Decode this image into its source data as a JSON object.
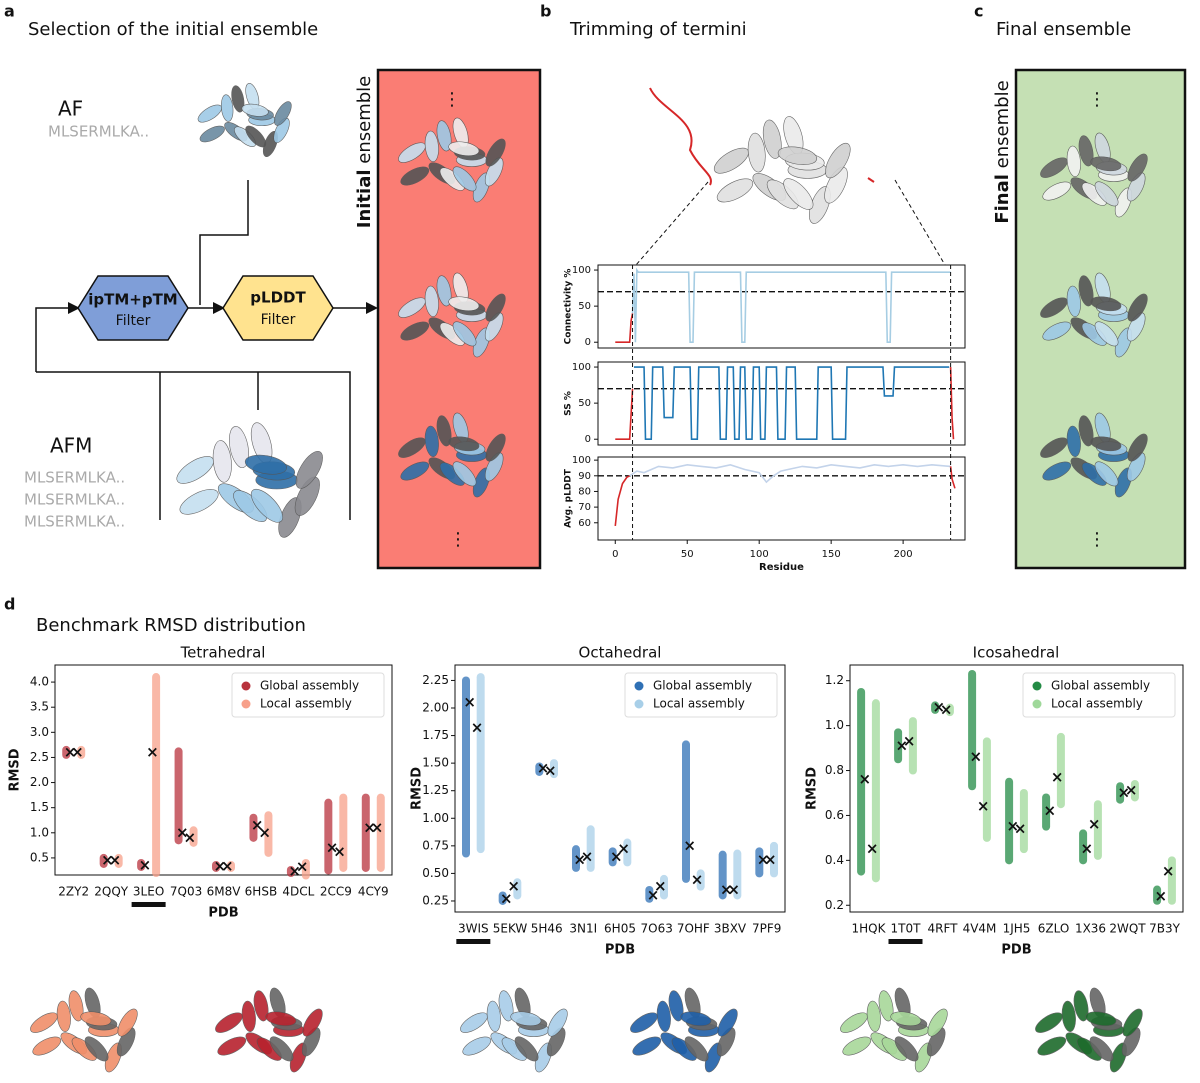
{
  "panels": [
    {
      "letter": "a",
      "title": "Selection of the initial ensemble"
    },
    {
      "letter": "b",
      "title": "Trimming of termini"
    },
    {
      "letter": "c",
      "title": "Final ensemble"
    },
    {
      "letter": "d",
      "title": "Benchmark RMSD distribution"
    }
  ],
  "diagram": {
    "af": "AF",
    "af_seq": "MLSERMLKA..",
    "afm": "AFM",
    "afm_seqs": [
      "MLSERMLKA..",
      "MLSERMLKA..",
      "MLSERMLKA.."
    ],
    "filter1": {
      "name": "ipTM+pTM",
      "label": "Filter"
    },
    "filter2": {
      "name": "pLDDT",
      "label": "Filter"
    },
    "initial": {
      "bold": "Initial",
      "rest": "ensemble"
    },
    "final": {
      "bold": "Final",
      "rest": "ensemble"
    },
    "ellipsis": "⋮",
    "trim_residues": [
      12,
      233
    ]
  },
  "chart_data": [
    {
      "type": "line",
      "ylabel": "Connectivity %",
      "xlim": [
        -12,
        243
      ],
      "ylim": [
        -8,
        107
      ],
      "yticks": [
        0,
        50,
        100
      ],
      "threshold": 70,
      "series": [
        {
          "color": "#d62728",
          "x": [
            0,
            10,
            11,
            12
          ],
          "values": [
            0,
            0,
            30,
            40
          ]
        },
        {
          "color": "#a6cde3",
          "x": [
            12,
            13,
            14,
            15,
            16,
            50,
            51,
            52,
            54,
            55,
            56,
            87,
            88,
            90,
            91,
            188,
            189,
            191,
            192,
            233
          ],
          "values": [
            40,
            95,
            0,
            100,
            97,
            97,
            97,
            0,
            0,
            97,
            97,
            97,
            0,
            0,
            97,
            97,
            0,
            0,
            97,
            97
          ]
        }
      ]
    },
    {
      "type": "line",
      "ylabel": "SS %",
      "xlim": [
        -12,
        243
      ],
      "ylim": [
        -8,
        107
      ],
      "yticks": [
        0,
        50,
        100
      ],
      "threshold": 70,
      "series": [
        {
          "color": "#d62728",
          "x": [
            0,
            10,
            12
          ],
          "values": [
            0,
            0,
            70
          ]
        },
        {
          "color": "#1f77b4",
          "x": [
            13,
            20,
            21,
            25,
            26,
            33,
            34,
            40,
            41,
            52,
            53,
            57,
            58,
            72,
            73,
            77,
            78,
            82,
            83,
            86,
            87,
            90,
            91,
            95,
            96,
            100,
            101,
            104,
            105,
            112,
            113,
            118,
            119,
            125,
            126,
            140,
            141,
            150,
            151,
            160,
            161,
            186,
            187,
            193,
            194,
            232
          ],
          "values": [
            100,
            100,
            0,
            0,
            100,
            100,
            30,
            30,
            100,
            100,
            0,
            0,
            100,
            100,
            0,
            0,
            100,
            100,
            0,
            0,
            100,
            100,
            0,
            0,
            100,
            100,
            0,
            0,
            100,
            100,
            0,
            0,
            100,
            100,
            0,
            0,
            100,
            100,
            0,
            0,
            100,
            100,
            60,
            60,
            100,
            100
          ]
        },
        {
          "color": "#d62728",
          "x": [
            233,
            234,
            235
          ],
          "values": [
            100,
            30,
            0
          ]
        }
      ]
    },
    {
      "type": "line",
      "ylabel": "Avg. pLDDT",
      "xlabel": "Residue",
      "xlim": [
        -12,
        243
      ],
      "xticks": [
        0,
        50,
        100,
        150,
        200
      ],
      "ylim": [
        49,
        102
      ],
      "yticks": [
        60,
        70,
        80,
        90,
        100
      ],
      "threshold": 90,
      "series": [
        {
          "color": "#d62728",
          "x": [
            0,
            2,
            5,
            8,
            10
          ],
          "values": [
            58,
            75,
            85,
            89,
            90
          ]
        },
        {
          "color": "#c3d3ea",
          "x": [
            10,
            15,
            20,
            30,
            40,
            50,
            60,
            70,
            80,
            90,
            100,
            105,
            110,
            115,
            120,
            130,
            140,
            150,
            160,
            170,
            180,
            190,
            200,
            210,
            220,
            233
          ],
          "values": [
            90,
            93,
            92,
            96,
            95,
            97,
            96,
            95,
            97,
            94,
            92,
            86,
            90,
            93,
            94,
            96,
            95,
            97,
            96,
            95,
            97,
            96,
            97,
            96,
            97,
            96
          ]
        },
        {
          "color": "#d62728",
          "x": [
            233,
            234,
            236
          ],
          "values": [
            96,
            88,
            82
          ]
        }
      ]
    },
    {
      "type": "strip",
      "title": "Tetrahedral",
      "xlabel": "PDB",
      "ylabel": "RMSD",
      "legend": "upper right",
      "highlight_index": 2,
      "categories": [
        "2ZY2",
        "2QQY",
        "3LEO",
        "7Q03",
        "6M8V",
        "6HSB",
        "4DCL",
        "2CC9",
        "4CY9"
      ],
      "ylim": [
        0.16,
        4.34
      ],
      "yticks": [
        0.5,
        {
          "value": 1,
          "label": "1.0"
        },
        1.5,
        {
          "value": 2,
          "label": "2.0"
        },
        2.5,
        {
          "value": 3,
          "label": "3.0"
        },
        3.5,
        {
          "value": 4,
          "label": "4.0"
        }
      ],
      "series": [
        {
          "name": "Global assembly",
          "color": "#b8323c",
          "values": [
            2.6,
            0.45,
            0.35,
            1.0,
            0.33,
            1.15,
            0.23,
            0.7,
            1.1
          ],
          "ranges": [
            [
              2.55,
              2.65
            ],
            [
              0.38,
              0.5
            ],
            [
              0.32,
              0.4
            ],
            [
              0.85,
              2.62
            ],
            [
              0.3,
              0.36
            ],
            [
              0.9,
              1.3
            ],
            [
              0.2,
              0.26
            ],
            [
              0.25,
              1.6
            ],
            [
              0.3,
              1.7
            ]
          ]
        },
        {
          "name": "Local assembly",
          "color": "#f7a08a",
          "values": [
            2.6,
            0.45,
            2.6,
            0.9,
            0.33,
            1.0,
            0.32,
            0.62,
            1.1
          ],
          "ranges": [
            [
              2.55,
              2.65
            ],
            [
              0.38,
              0.5
            ],
            [
              0.2,
              4.1
            ],
            [
              0.8,
              1.05
            ],
            [
              0.3,
              0.36
            ],
            [
              0.6,
              1.35
            ],
            [
              0.15,
              0.4
            ],
            [
              0.3,
              1.7
            ],
            [
              0.3,
              1.7
            ]
          ]
        }
      ]
    },
    {
      "type": "strip",
      "title": "Octahedral",
      "xlabel": "PDB",
      "ylabel": "RMSD",
      "legend": "upper right",
      "highlight_index": 0,
      "categories": [
        "3WIS",
        "5EKW",
        "5H46",
        "3N1I",
        "6H05",
        "7O63",
        "7OHF",
        "3BXV",
        "7PF9"
      ],
      "ylim": [
        0.15,
        2.39
      ],
      "yticks": [
        0.25,
        {
          "value": 0.5,
          "label": "0.50"
        },
        0.75,
        {
          "value": 1,
          "label": "1.00"
        },
        1.25,
        {
          "value": 1.5,
          "label": "1.50"
        },
        1.75,
        {
          "value": 2,
          "label": "2.00"
        },
        2.25
      ],
      "series": [
        {
          "name": "Global assembly",
          "color": "#2f70b5",
          "values": [
            2.05,
            0.27,
            1.45,
            0.62,
            0.65,
            0.3,
            0.75,
            0.35,
            0.62
          ],
          "ranges": [
            [
              0.68,
              2.25
            ],
            [
              0.25,
              0.3
            ],
            [
              1.42,
              1.47
            ],
            [
              0.55,
              0.72
            ],
            [
              0.6,
              0.7
            ],
            [
              0.27,
              0.35
            ],
            [
              0.45,
              1.67
            ],
            [
              0.3,
              0.67
            ],
            [
              0.5,
              0.7
            ]
          ]
        },
        {
          "name": "Local assembly",
          "color": "#a8cfe8",
          "values": [
            1.82,
            0.38,
            1.43,
            0.65,
            0.72,
            0.38,
            0.44,
            0.35,
            0.62
          ],
          "ranges": [
            [
              0.72,
              2.28
            ],
            [
              0.3,
              0.42
            ],
            [
              1.4,
              1.5
            ],
            [
              0.55,
              0.9
            ],
            [
              0.6,
              0.78
            ],
            [
              0.3,
              0.45
            ],
            [
              0.38,
              0.5
            ],
            [
              0.3,
              0.68
            ],
            [
              0.5,
              0.75
            ]
          ]
        }
      ]
    },
    {
      "type": "strip",
      "title": "Icosahedral",
      "xlabel": "PDB",
      "ylabel": "RMSD",
      "legend": "upper right",
      "highlight_index": 1,
      "categories": [
        "1HQK",
        "1T0T",
        "4RFT",
        "4V4M",
        "1JH5",
        "6ZLO",
        "1X36",
        "2WQT",
        "7B3Y"
      ],
      "ylim": [
        0.17,
        1.27
      ],
      "yticks": [
        0.2,
        0.4,
        0.6,
        0.8,
        {
          "value": 1,
          "label": "1.0"
        },
        1.2
      ],
      "series": [
        {
          "name": "Global assembly",
          "color": "#238b45",
          "values": [
            0.76,
            0.91,
            1.08,
            0.86,
            0.55,
            0.62,
            0.45,
            0.7,
            0.24
          ],
          "ranges": [
            [
              0.35,
              1.15
            ],
            [
              0.85,
              0.97
            ],
            [
              1.07,
              1.09
            ],
            [
              0.73,
              1.23
            ],
            [
              0.4,
              0.75
            ],
            [
              0.55,
              0.68
            ],
            [
              0.4,
              0.52
            ],
            [
              0.67,
              0.73
            ],
            [
              0.22,
              0.27
            ]
          ]
        },
        {
          "name": "Local assembly",
          "color": "#9fd89a",
          "values": [
            0.45,
            0.93,
            1.07,
            0.64,
            0.54,
            0.77,
            0.56,
            0.71,
            0.35
          ],
          "ranges": [
            [
              0.32,
              1.1
            ],
            [
              0.8,
              1.02
            ],
            [
              1.06,
              1.08
            ],
            [
              0.5,
              0.93
            ],
            [
              0.45,
              0.7
            ],
            [
              0.65,
              0.95
            ],
            [
              0.42,
              0.65
            ],
            [
              0.68,
              0.74
            ],
            [
              0.22,
              0.4
            ]
          ]
        }
      ]
    }
  ]
}
